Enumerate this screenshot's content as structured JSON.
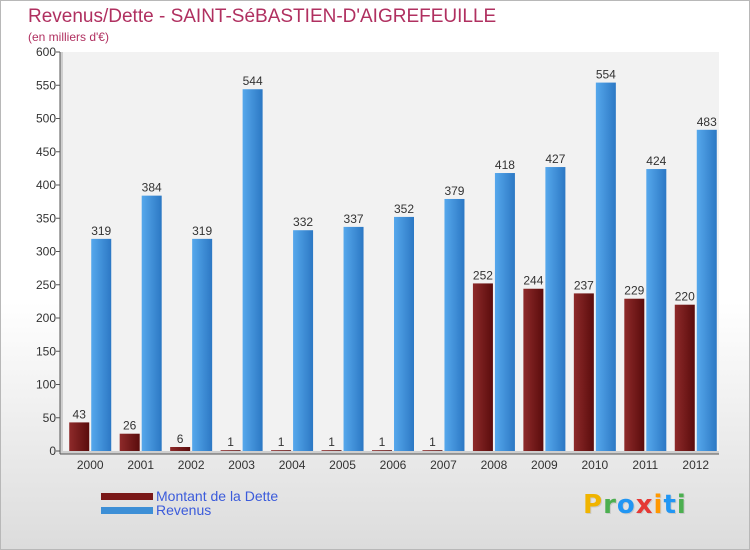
{
  "chart_data": {
    "type": "bar",
    "title": "Revenus/Dette - SAINT-SéBASTIEN-D'AIGREFEUILLE",
    "subtitle": "(en milliers d'€)",
    "categories": [
      "2000",
      "2001",
      "2002",
      "2003",
      "2004",
      "2005",
      "2006",
      "2007",
      "2008",
      "2009",
      "2010",
      "2011",
      "2012"
    ],
    "series": [
      {
        "name": "Montant de la Dette",
        "color": "#7a1818",
        "values": [
          43,
          26,
          6,
          1,
          1,
          1,
          1,
          1,
          252,
          244,
          237,
          229,
          220
        ]
      },
      {
        "name": "Revenus",
        "color": "#3d8fd6",
        "values": [
          319,
          384,
          319,
          544,
          332,
          337,
          352,
          379,
          418,
          427,
          554,
          424,
          483
        ]
      }
    ],
    "ylim": [
      0,
      600
    ],
    "yticks": [
      0,
      50,
      100,
      150,
      200,
      250,
      300,
      350,
      400,
      450,
      500,
      550,
      600
    ],
    "grid": false,
    "legend_position": "bottom-left"
  },
  "watermark": {
    "letters": [
      "P",
      "r",
      "o",
      "x",
      "i",
      "t",
      "i"
    ],
    "colors": [
      "#f0b400",
      "#4caf50",
      "#2196f3",
      "#e53935",
      "#ff9800",
      "#2196f3",
      "#4caf50"
    ]
  }
}
